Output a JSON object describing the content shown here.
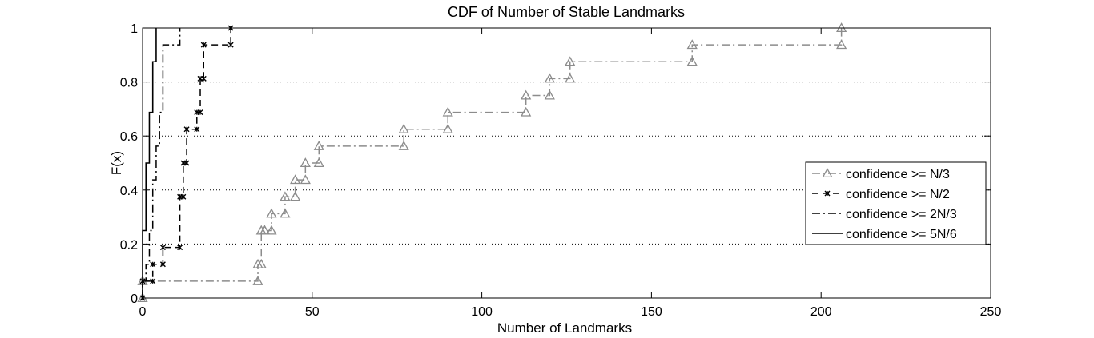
{
  "chart_data": {
    "type": "line",
    "step": true,
    "title": "CDF of Number of Stable Landmarks",
    "xlabel": "Number of Landmarks",
    "ylabel": "F(x)",
    "xlim": [
      0,
      250
    ],
    "ylim": [
      0,
      1
    ],
    "xticks": [
      0,
      50,
      100,
      150,
      200,
      250
    ],
    "yticks": [
      0,
      0.2,
      0.4,
      0.6,
      0.8,
      1
    ],
    "ytick_labels": [
      "0",
      "0.2",
      "0.4",
      "0.6",
      "0.8",
      "1"
    ],
    "grid": "horizontal dotted",
    "legend_position": "right",
    "series": [
      {
        "name": "confidence >= N/3",
        "style": "dash-dot",
        "color": "#8c8c8c",
        "marker": "triangle",
        "x": [
          0,
          34,
          35,
          36,
          38,
          42,
          45,
          48,
          52,
          77,
          90,
          113,
          120,
          126,
          162,
          206
        ],
        "y": [
          0.0625,
          0.125,
          0.25,
          0.25,
          0.3125,
          0.375,
          0.4375,
          0.5,
          0.5625,
          0.625,
          0.6875,
          0.75,
          0.8125,
          0.875,
          0.9375,
          1.0
        ]
      },
      {
        "name": "confidence >= N/2",
        "style": "dashed",
        "color": "#000000",
        "marker": "x",
        "x": [
          0,
          3,
          6,
          11,
          12,
          13,
          16,
          17,
          18,
          26
        ],
        "y": [
          0.0625,
          0.125,
          0.1875,
          0.375,
          0.5,
          0.625,
          0.6875,
          0.8125,
          0.9375,
          1.0
        ]
      },
      {
        "name": "confidence >= 2N/3",
        "style": "dash-dot",
        "color": "#000000",
        "marker": "none",
        "x": [
          0,
          1,
          2,
          3,
          4,
          5,
          6,
          11
        ],
        "y": [
          0.0625,
          0.125,
          0.25,
          0.4375,
          0.5625,
          0.6875,
          0.9375,
          1.0
        ]
      },
      {
        "name": "confidence >= 5N/6",
        "style": "solid",
        "color": "#000000",
        "marker": "none",
        "x": [
          0,
          1,
          2,
          3,
          4
        ],
        "y": [
          0.25,
          0.5,
          0.6875,
          0.875,
          1.0
        ]
      }
    ]
  }
}
